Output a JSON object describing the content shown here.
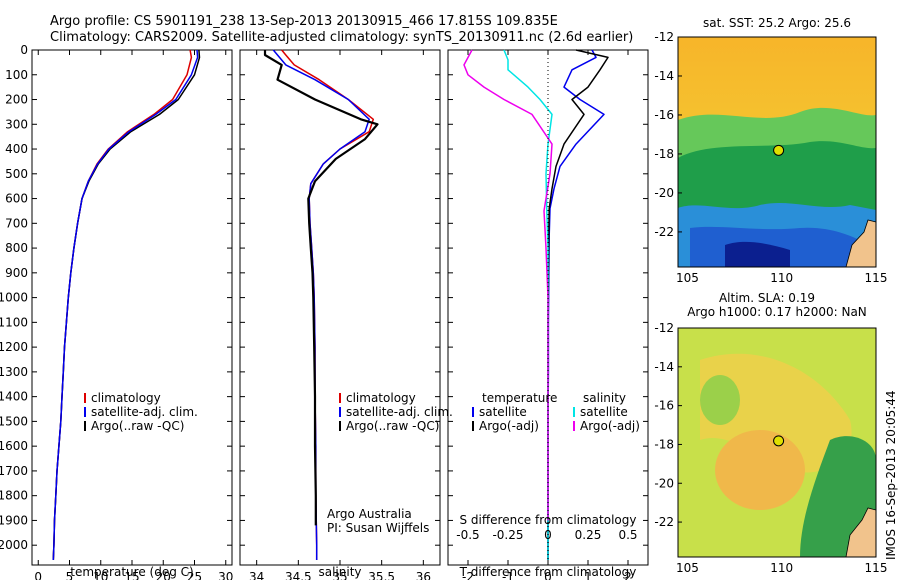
{
  "header": {
    "line1": "Argo profile: CS 5901191_238 13-Sep-2013 20130915_466 17.815S 109.835E",
    "line2": "Climatology: CARS2009. Satellite-adjusted climatology: synTS_20130911.nc (2.6d earlier)"
  },
  "timestamp": "IMOS 16-Sep-2013 20:05:44",
  "colors": {
    "climatology": "#dd0000",
    "satellite": "#0000ee",
    "argo": "#000000",
    "cyan": "#00e5e5",
    "magenta": "#ee00ee"
  },
  "chart_data": [
    {
      "id": "temperature",
      "type": "line",
      "xlabel": "temperature (deg C)",
      "ylabel": "",
      "xlim": [
        -1,
        31
      ],
      "ylim": [
        2080,
        0
      ],
      "xticks": [
        0,
        5,
        10,
        15,
        20,
        25,
        30
      ],
      "yticks": [
        0,
        100,
        200,
        300,
        400,
        500,
        600,
        700,
        800,
        900,
        1000,
        1100,
        1200,
        1300,
        1400,
        1500,
        1600,
        1700,
        1800,
        1900,
        2000
      ],
      "legend": {
        "position": "lower-center",
        "entries": [
          "climatology",
          "satellite-adj. clim.",
          "Argo(..raw -QC)"
        ]
      },
      "series": [
        {
          "name": "climatology",
          "color": "climatology",
          "width": 1.5,
          "x": [
            24.3,
            24.5,
            23.8,
            21.5,
            18.5,
            14.3,
            11.2,
            9.4,
            8.0,
            7.0,
            6.3,
            5.7,
            5.2,
            4.8,
            4.5,
            4.2,
            4.0,
            3.8,
            3.6,
            3.3,
            3.0,
            2.8,
            2.6,
            2.5,
            2.4
          ],
          "y": [
            0,
            30,
            100,
            200,
            260,
            330,
            400,
            460,
            530,
            600,
            700,
            800,
            900,
            1000,
            1100,
            1200,
            1300,
            1400,
            1500,
            1600,
            1700,
            1800,
            1900,
            2000,
            2060
          ]
        },
        {
          "name": "Argo(..raw -QC)",
          "color": "argo",
          "width": 1.5,
          "x": [
            25.7,
            25.8,
            25.0,
            22.4,
            19.4,
            14.8,
            11.5,
            9.6,
            8.1,
            7.0,
            6.3,
            5.7,
            5.2,
            4.8,
            4.5,
            4.2,
            4.0,
            3.8,
            3.6,
            3.3,
            3.0,
            2.8,
            2.6,
            2.5,
            2.4
          ],
          "y": [
            0,
            30,
            100,
            200,
            260,
            330,
            400,
            460,
            530,
            600,
            700,
            800,
            900,
            1000,
            1100,
            1200,
            1300,
            1400,
            1500,
            1600,
            1700,
            1800,
            1900,
            2000,
            2060
          ]
        },
        {
          "name": "satellite-adj. clim.",
          "color": "satellite",
          "width": 1.5,
          "x": [
            25.4,
            25.5,
            24.5,
            22.0,
            18.8,
            14.5,
            11.3,
            9.5,
            8.0,
            7.0,
            6.3,
            5.7,
            5.2,
            4.8,
            4.5,
            4.2,
            4.0,
            3.8,
            3.6,
            3.3,
            3.0,
            2.8,
            2.6,
            2.5,
            2.4
          ],
          "y": [
            0,
            30,
            100,
            200,
            260,
            330,
            400,
            460,
            530,
            600,
            700,
            800,
            900,
            1000,
            1100,
            1200,
            1300,
            1400,
            1500,
            1600,
            1700,
            1800,
            1900,
            2000,
            2060
          ]
        }
      ]
    },
    {
      "id": "salinity",
      "type": "line",
      "xlabel": "salinity",
      "xlim": [
        33.8,
        36.2
      ],
      "ylim": [
        2080,
        0
      ],
      "xticks": [
        34,
        34.5,
        35,
        35.5,
        36
      ],
      "legend": {
        "position": "lower-right",
        "entries": [
          "climatology",
          "satellite-adj. clim.",
          "Argo(..raw -QC)"
        ]
      },
      "annotations": [
        "Argo Australia",
        "PI: Susan Wijffels"
      ],
      "series": [
        {
          "name": "climatology",
          "color": "climatology",
          "width": 1.5,
          "x": [
            34.3,
            34.35,
            34.45,
            34.75,
            35.1,
            35.4,
            35.35,
            35.0,
            34.8,
            34.65,
            34.63,
            34.64,
            34.66,
            34.68,
            34.69,
            34.7,
            34.7,
            34.71,
            34.71,
            34.72,
            34.72
          ],
          "y": [
            0,
            20,
            60,
            120,
            200,
            280,
            330,
            400,
            460,
            540,
            600,
            700,
            800,
            900,
            1000,
            1200,
            1400,
            1600,
            1800,
            2000,
            2060
          ]
        },
        {
          "name": "satellite-adj. clim.",
          "color": "satellite",
          "width": 1.5,
          "x": [
            34.2,
            34.25,
            34.35,
            34.7,
            35.1,
            35.35,
            35.3,
            35.0,
            34.8,
            34.65,
            34.63,
            34.64,
            34.66,
            34.68,
            34.69,
            34.7,
            34.7,
            34.71,
            34.71,
            34.72,
            34.72
          ],
          "y": [
            0,
            20,
            60,
            120,
            200,
            280,
            330,
            400,
            460,
            540,
            600,
            700,
            800,
            900,
            1000,
            1200,
            1400,
            1600,
            1800,
            2000,
            2060
          ]
        },
        {
          "name": "Argo(..raw -QC)",
          "color": "argo",
          "width": 2.2,
          "x": [
            34.1,
            34.1,
            34.3,
            34.25,
            34.7,
            35.25,
            35.45,
            35.3,
            34.95,
            34.7,
            34.62,
            34.63,
            34.65,
            34.67,
            34.68,
            34.69,
            34.7,
            34.7,
            34.71,
            34.71,
            34.71
          ],
          "y": [
            0,
            20,
            60,
            120,
            200,
            280,
            300,
            360,
            440,
            530,
            600,
            700,
            800,
            900,
            1000,
            1200,
            1400,
            1600,
            1800,
            1900,
            1920
          ]
        }
      ]
    },
    {
      "id": "difference",
      "type": "line",
      "xlabel": "T difference from climatology",
      "xlabel_top": "S difference from climatology",
      "xlim": [
        -2.5,
        2.5
      ],
      "ylim": [
        2080,
        0
      ],
      "xticks": [
        -2,
        -1,
        0,
        1,
        2
      ],
      "xtick_labels": [
        "-2",
        "-1",
        "0",
        "1",
        "2"
      ],
      "sticks": [
        -0.5,
        -0.25,
        0,
        0.25,
        0.5
      ],
      "stick_labels": [
        "-0.5",
        "-0.25",
        "0",
        "0.25",
        "0.5"
      ],
      "zero_line": "dotted",
      "legend": {
        "position": "lower-center",
        "temperature_title": "temperature",
        "salinity_title": "salinity",
        "temperature_entries": [
          "satellite",
          "Argo(-adj)"
        ],
        "salinity_entries": [
          "satellite",
          "Argo(-adj)"
        ]
      },
      "series": [
        {
          "name": "satellite",
          "kind": "temperature",
          "color": "satellite",
          "width": 1.5,
          "x": [
            1.1,
            1.2,
            0.6,
            0.4,
            0.8,
            1.4,
            0.7,
            0.3,
            0.15,
            0.05,
            0.03,
            0.02,
            0.01,
            0.01,
            0.0,
            0.0,
            0.0,
            0.0,
            0.0
          ],
          "y": [
            0,
            30,
            80,
            150,
            200,
            260,
            380,
            470,
            560,
            640,
            750,
            900,
            1100,
            1300,
            1500,
            1700,
            1900,
            2000,
            2060
          ]
        },
        {
          "name": "Argo(-adj)",
          "kind": "temperature",
          "color": "argo",
          "width": 1.5,
          "x": [
            0.7,
            1.5,
            1.3,
            1.0,
            0.6,
            0.9,
            0.4,
            0.2,
            0.1,
            0.03,
            0.02,
            0.01,
            0.0,
            0.0,
            0.0,
            0.0,
            0.0,
            0.0,
            0.0
          ],
          "y": [
            0,
            30,
            80,
            150,
            200,
            260,
            380,
            470,
            560,
            640,
            750,
            900,
            1100,
            1300,
            1500,
            1700,
            1900,
            2000,
            2060
          ]
        },
        {
          "name": "satellite",
          "kind": "salinity",
          "color": "cyan",
          "width": 1.5,
          "x": [
            -1.1,
            -1.0,
            -1.0,
            -0.5,
            -0.2,
            0.1,
            0.0,
            -0.05,
            -0.03,
            0.0,
            0.0,
            0.0,
            0.0,
            0.0,
            0.0
          ],
          "y": [
            0,
            40,
            80,
            150,
            200,
            260,
            380,
            500,
            650,
            800,
            1000,
            1300,
            1600,
            1900,
            2060
          ]
        },
        {
          "name": "Argo(-adj)",
          "kind": "salinity",
          "color": "magenta",
          "width": 1.5,
          "x": [
            -1.9,
            -2.1,
            -2.0,
            -1.6,
            -1.1,
            -0.4,
            0.1,
            0.05,
            -0.1,
            -0.05,
            0.0,
            0.0,
            0.0,
            0.0,
            0.0
          ],
          "y": [
            0,
            60,
            100,
            150,
            200,
            260,
            380,
            500,
            650,
            800,
            1000,
            1300,
            1600,
            1800,
            1900
          ]
        }
      ]
    },
    {
      "id": "sst_map",
      "type": "heatmap",
      "title": "sat. SST: 25.2 Argo: 25.6",
      "xlim": [
        104.5,
        115
      ],
      "ylim": [
        -23.8,
        -12
      ],
      "xticks": [
        105,
        110,
        115
      ],
      "yticks": [
        -12,
        -14,
        -16,
        -18,
        -20,
        -22
      ],
      "marker": {
        "lon": 109.835,
        "lat": -17.815
      }
    },
    {
      "id": "sla_map",
      "type": "heatmap",
      "title": "Altim. SLA: 0.19",
      "subtitle": "Argo h1000: 0.17 h2000: NaN",
      "xlim": [
        104.5,
        115
      ],
      "ylim": [
        -23.8,
        -12
      ],
      "xticks": [
        105,
        110,
        115
      ],
      "yticks": [
        -12,
        -14,
        -16,
        -18,
        -20,
        -22
      ],
      "marker": {
        "lon": 109.835,
        "lat": -17.815
      }
    }
  ]
}
